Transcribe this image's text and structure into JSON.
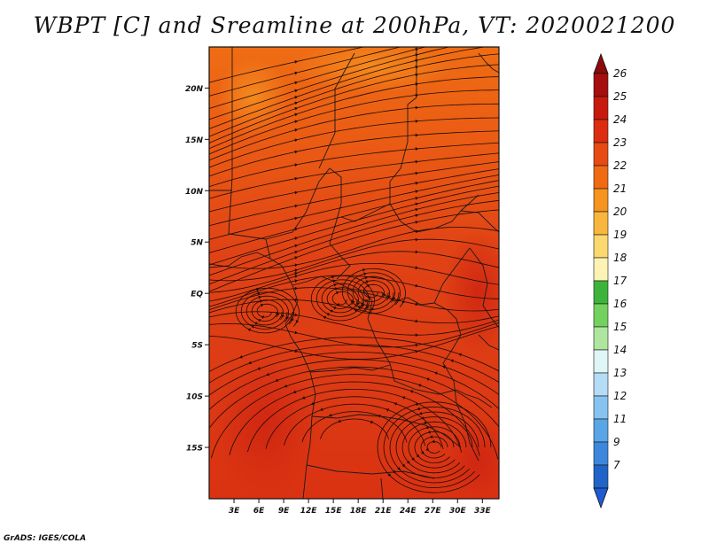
{
  "title": "WBPT [C] and Sreamline at 200hPa, VT: 2020021200",
  "credit": "GrADS: IGES/COLA",
  "map": {
    "lon_range": [
      0,
      35
    ],
    "lat_range": [
      -20,
      24
    ],
    "lat_ticks": [
      {
        "value": 20,
        "label": "20N"
      },
      {
        "value": 15,
        "label": "15N"
      },
      {
        "value": 10,
        "label": "10N"
      },
      {
        "value": 5,
        "label": "5N"
      },
      {
        "value": 0,
        "label": "EQ"
      },
      {
        "value": -5,
        "label": "5S"
      },
      {
        "value": -10,
        "label": "10S"
      },
      {
        "value": -15,
        "label": "15S"
      }
    ],
    "lon_ticks": [
      {
        "value": 3,
        "label": "3E"
      },
      {
        "value": 6,
        "label": "6E"
      },
      {
        "value": 9,
        "label": "9E"
      },
      {
        "value": 12,
        "label": "12E"
      },
      {
        "value": 15,
        "label": "15E"
      },
      {
        "value": 18,
        "label": "18E"
      },
      {
        "value": 21,
        "label": "21E"
      },
      {
        "value": 24,
        "label": "24E"
      },
      {
        "value": 27,
        "label": "27E"
      },
      {
        "value": 30,
        "label": "30E"
      },
      {
        "value": 33,
        "label": "33E"
      }
    ]
  },
  "colorbar": {
    "levels": [
      {
        "label": "26",
        "color": "#a50f0f"
      },
      {
        "label": "25",
        "color": "#c8190e"
      },
      {
        "label": "24",
        "color": "#dc2d12"
      },
      {
        "label": "23",
        "color": "#e84a14"
      },
      {
        "label": "22",
        "color": "#f06a14"
      },
      {
        "label": "21",
        "color": "#f5941e"
      },
      {
        "label": "20",
        "color": "#f8b73c"
      },
      {
        "label": "19",
        "color": "#fbd870"
      },
      {
        "label": "18",
        "color": "#fdf3b4"
      },
      {
        "label": "17",
        "color": "#3cb43c"
      },
      {
        "label": "16",
        "color": "#73d25f"
      },
      {
        "label": "15",
        "color": "#aee6a0"
      },
      {
        "label": "14",
        "color": "#e0f5f5"
      },
      {
        "label": "13",
        "color": "#b4dcf5"
      },
      {
        "label": "12",
        "color": "#87c3f0"
      },
      {
        "label": "11",
        "color": "#5aa5e6"
      },
      {
        "label": "9",
        "color": "#3c87dc"
      },
      {
        "label": "7",
        "color": "#2164c8"
      }
    ],
    "top_color": "#8c0a0a",
    "bottom_color": "#1e5ad2"
  }
}
